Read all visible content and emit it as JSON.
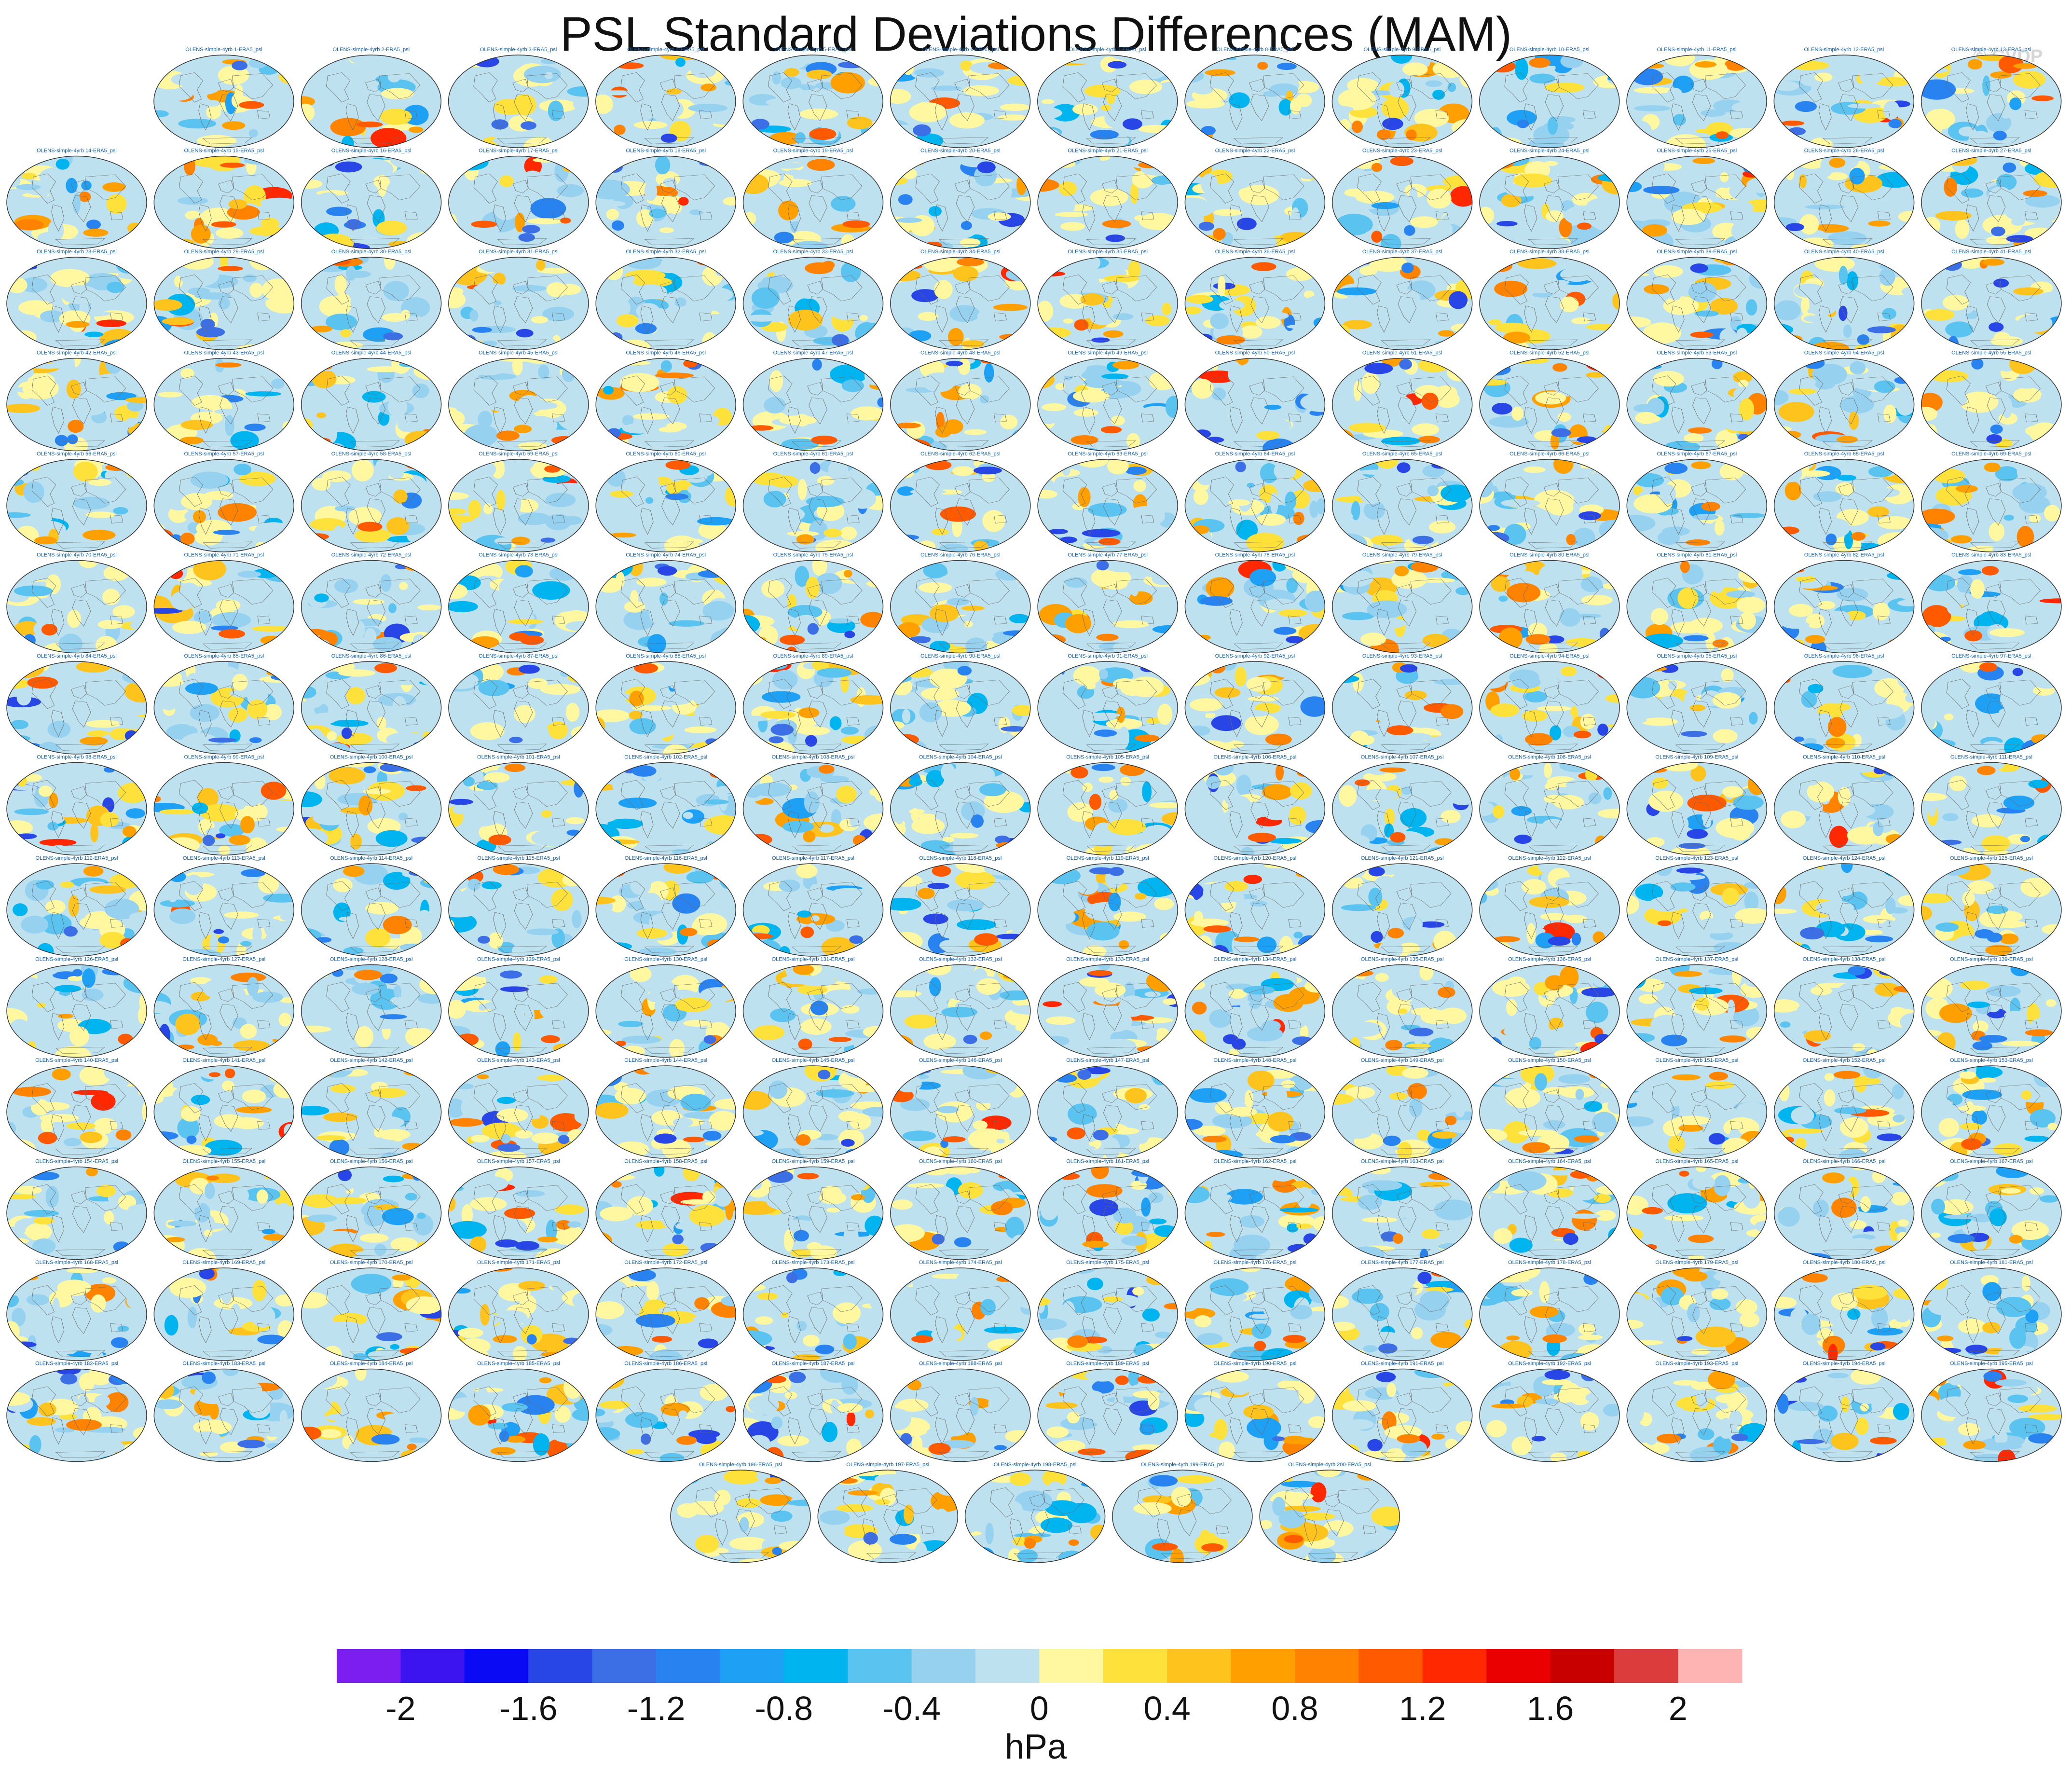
{
  "title": "PSL Standard Deviations Differences (MAM)",
  "watermark": "© CVDP",
  "chart_data": {
    "type": "heatmap",
    "title": "PSL Standard Deviations Differences (MAM)",
    "panel_label_template": "OLENS-simple-4yrb {n}-ERA5_psl",
    "panel_count": 200,
    "panels_per_row": [
      13,
      14,
      14,
      14,
      14,
      14,
      14,
      14,
      14,
      14,
      14,
      14,
      14,
      14,
      5
    ],
    "colorbar": {
      "units": "hPa",
      "boundaries": [
        -2.2,
        -2,
        -1.8,
        -1.6,
        -1.4,
        -1.2,
        -1,
        -0.8,
        -0.6,
        -0.4,
        -0.2,
        0,
        0.2,
        0.4,
        0.6,
        0.8,
        1,
        1.2,
        1.4,
        1.6,
        1.8,
        2,
        2.2
      ],
      "tick_labels": [
        "-2",
        "-1.6",
        "-1.2",
        "-0.8",
        "-0.4",
        "0",
        "0.4",
        "0.8",
        "1.2",
        "1.6",
        "2"
      ],
      "colors": [
        "#7d1ef0",
        "#3c14f0",
        "#0a0af5",
        "#2846e6",
        "#3c6ee6",
        "#2882f0",
        "#1ea0f5",
        "#00b4f0",
        "#5ac3f0",
        "#96d2f0",
        "#bee1f0",
        "#fff8a0",
        "#ffe13c",
        "#ffc31e",
        "#ffa000",
        "#ff8200",
        "#ff5a00",
        "#ff2800",
        "#eb0000",
        "#c80000",
        "#dc3c3c",
        "#ffb4b4"
      ]
    }
  }
}
